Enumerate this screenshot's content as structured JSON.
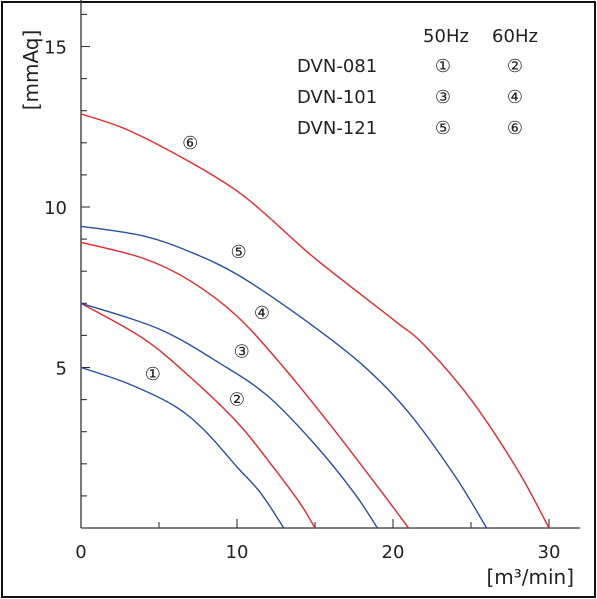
{
  "chart_data": {
    "type": "line",
    "title": "",
    "xlabel": "[m³/min]",
    "ylabel": "[mmAq]",
    "xlim": [
      0,
      32
    ],
    "ylim": [
      0,
      16.5
    ],
    "x_ticks": [
      0,
      10,
      20,
      30
    ],
    "y_ticks": [
      5,
      10,
      15
    ],
    "x_minor_step": 5,
    "y_minor_step": 1,
    "grid": false,
    "legend": {
      "headers": [
        "50Hz",
        "60Hz"
      ],
      "rows": [
        {
          "model": "DVN-081",
          "hz50": "①",
          "hz60": "②"
        },
        {
          "model": "DVN-101",
          "hz50": "③",
          "hz60": "④"
        },
        {
          "model": "DVN-121",
          "hz50": "⑤",
          "hz60": "⑥"
        }
      ]
    },
    "colors": {
      "blue": "#2a4f9e",
      "red": "#e0282e"
    },
    "series": [
      {
        "id": "1",
        "label": "①",
        "color": "blue",
        "label_at": [
          4.6,
          4.8
        ],
        "points": [
          [
            0,
            5.0
          ],
          [
            3,
            4.5
          ],
          [
            6,
            3.8
          ],
          [
            8,
            3.0
          ],
          [
            10,
            1.9
          ],
          [
            11.5,
            1.1
          ],
          [
            13,
            0
          ]
        ]
      },
      {
        "id": "2",
        "label": "②",
        "color": "red",
        "label_at": [
          10,
          4.0
        ],
        "points": [
          [
            0,
            7.0
          ],
          [
            4,
            5.9
          ],
          [
            7,
            4.7
          ],
          [
            10,
            3.3
          ],
          [
            12,
            2.1
          ],
          [
            14,
            0.8
          ],
          [
            15,
            0
          ]
        ]
      },
      {
        "id": "3",
        "label": "③",
        "color": "blue",
        "label_at": [
          10.3,
          5.5
        ],
        "points": [
          [
            0,
            7.0
          ],
          [
            5,
            6.2
          ],
          [
            9,
            5.1
          ],
          [
            12,
            4.1
          ],
          [
            15,
            2.6
          ],
          [
            17.5,
            1.1
          ],
          [
            19,
            0
          ]
        ]
      },
      {
        "id": "4",
        "label": "④",
        "color": "red",
        "label_at": [
          11.6,
          6.7
        ],
        "points": [
          [
            0,
            8.9
          ],
          [
            4,
            8.4
          ],
          [
            7,
            7.7
          ],
          [
            10,
            6.6
          ],
          [
            13,
            5.0
          ],
          [
            16,
            3.2
          ],
          [
            19,
            1.3
          ],
          [
            21,
            0
          ]
        ]
      },
      {
        "id": "5",
        "label": "⑤",
        "color": "blue",
        "label_at": [
          10.1,
          8.6
        ],
        "points": [
          [
            0,
            9.4
          ],
          [
            4,
            9.1
          ],
          [
            7,
            8.6
          ],
          [
            10,
            7.9
          ],
          [
            14,
            6.6
          ],
          [
            18,
            5.1
          ],
          [
            21,
            3.6
          ],
          [
            24,
            1.6
          ],
          [
            26,
            0
          ]
        ]
      },
      {
        "id": "6",
        "label": "⑥",
        "color": "red",
        "label_at": [
          7.0,
          12.0
        ],
        "points": [
          [
            0,
            12.9
          ],
          [
            3,
            12.4
          ],
          [
            7,
            11.4
          ],
          [
            10,
            10.5
          ],
          [
            12,
            9.7
          ],
          [
            15,
            8.4
          ],
          [
            20,
            6.5
          ],
          [
            22,
            5.7
          ],
          [
            25,
            4.0
          ],
          [
            28,
            1.8
          ],
          [
            30,
            0
          ]
        ]
      }
    ]
  }
}
